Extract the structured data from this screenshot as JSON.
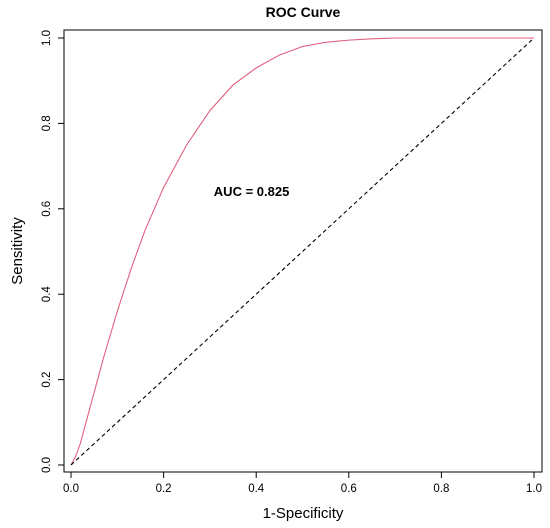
{
  "chart_data": {
    "type": "line",
    "title": "ROC Curve",
    "xlabel": "1-Specificity",
    "ylabel": "Sensitivity",
    "xlim": [
      0,
      1
    ],
    "ylim": [
      0,
      1
    ],
    "x_ticks": [
      "0.0",
      "0.2",
      "0.4",
      "0.6",
      "0.8",
      "1.0"
    ],
    "y_ticks": [
      "0.0",
      "0.2",
      "0.4",
      "0.6",
      "0.8",
      "1.0"
    ],
    "grid": false,
    "legend": "none",
    "annotation": {
      "text": "AUC = 0.825",
      "x": 0.39,
      "y": 0.63
    },
    "series": [
      {
        "style": "solid",
        "color": "#e0607e",
        "x": [
          0.0,
          0.01,
          0.02,
          0.03,
          0.05,
          0.07,
          0.1,
          0.13,
          0.16,
          0.2,
          0.25,
          0.3,
          0.35,
          0.4,
          0.45,
          0.5,
          0.55,
          0.6,
          0.65,
          0.7,
          0.75,
          0.8,
          0.85,
          0.9,
          0.95,
          1.0
        ],
        "y": [
          0.0,
          0.02,
          0.05,
          0.09,
          0.17,
          0.25,
          0.36,
          0.46,
          0.55,
          0.65,
          0.75,
          0.83,
          0.89,
          0.93,
          0.96,
          0.98,
          0.99,
          0.995,
          0.998,
          1.0,
          1.0,
          1.0,
          1.0,
          1.0,
          1.0,
          1.0
        ]
      },
      {
        "style": "dashed",
        "color": "#000000",
        "x": [
          0,
          1
        ],
        "y": [
          0,
          1
        ]
      }
    ]
  }
}
